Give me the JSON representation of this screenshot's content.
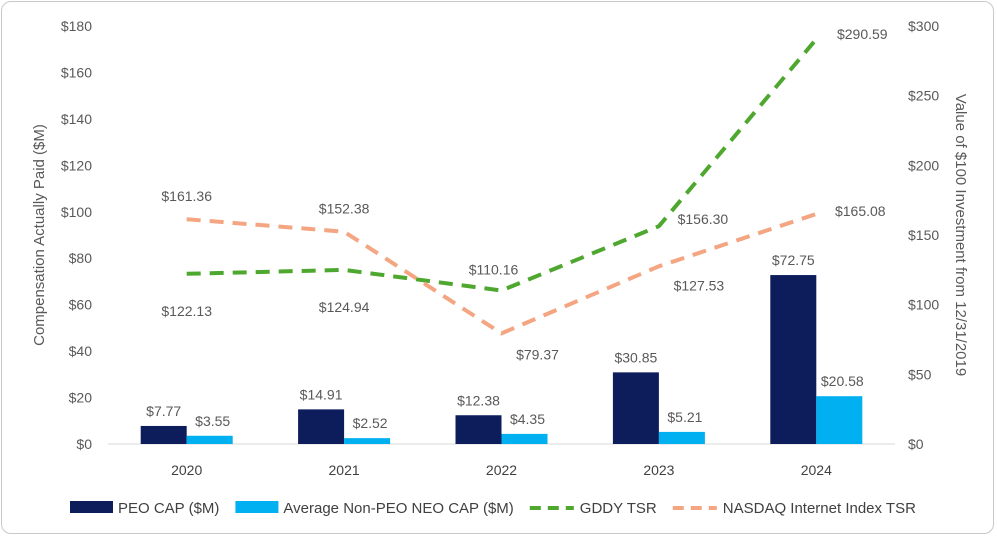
{
  "chart_data": {
    "type": "bar",
    "categories": [
      "2020",
      "2021",
      "2022",
      "2023",
      "2024"
    ],
    "y_left": {
      "label": "Compensation Actually Paid ($M)",
      "min": 0,
      "max": 180,
      "step": 20,
      "prefix": "$"
    },
    "y_right": {
      "label": "Value of $100 Investment from 12/31/2019",
      "min": 0,
      "max": 300,
      "step": 50,
      "prefix": "$"
    },
    "bar_series": [
      {
        "name": "PEO CAP ($M)",
        "color": "#0d1d5c",
        "values": [
          7.77,
          14.91,
          12.38,
          30.85,
          72.75
        ],
        "labels": [
          "$7.77",
          "$14.91",
          "$12.38",
          "$30.85",
          "$72.75"
        ]
      },
      {
        "name": "Average Non-PEO NEO CAP ($M)",
        "color": "#00b0f0",
        "values": [
          3.55,
          2.52,
          4.35,
          5.21,
          20.58
        ],
        "labels": [
          "$3.55",
          "$2.52",
          "$4.35",
          "$5.21",
          "$20.58"
        ]
      }
    ],
    "line_series": [
      {
        "name": "GDDY TSR",
        "color": "#4ea72e",
        "axis": "right",
        "dashed": true,
        "values": [
          122.13,
          124.94,
          110.16,
          156.3,
          290.59
        ],
        "labels": [
          "$122.13",
          "$124.94",
          "$110.16",
          "$156.30",
          "$290.59"
        ]
      },
      {
        "name": "NASDAQ Internet Index TSR",
        "color": "#f4a582",
        "axis": "right",
        "dashed": true,
        "values": [
          161.36,
          152.38,
          79.37,
          127.53,
          165.08
        ],
        "labels": [
          "$161.36",
          "$152.38",
          "$79.37",
          "$127.53",
          "$165.08"
        ]
      }
    ],
    "legend_position": "bottom",
    "grid": false
  }
}
